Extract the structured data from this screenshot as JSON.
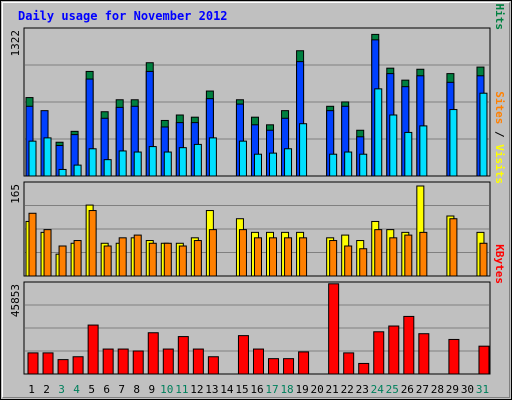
{
  "chart_data": {
    "type": "bar",
    "title": "Daily usage for November 2012",
    "categories": [
      "1",
      "2",
      "3",
      "4",
      "5",
      "6",
      "7",
      "8",
      "9",
      "10",
      "11",
      "12",
      "13",
      "14",
      "15",
      "16",
      "17",
      "18",
      "19",
      "20",
      "21",
      "22",
      "23",
      "24",
      "25",
      "26",
      "27",
      "28",
      "29",
      "30",
      "31"
    ],
    "weekend_days": [
      "3",
      "4",
      "10",
      "11",
      "17",
      "18",
      "24",
      "25",
      "31"
    ],
    "colors": {
      "title": "#0000ff",
      "hits": "#008040",
      "files": "#0040ff",
      "pages": "#00e0ff",
      "visits": "#ffff00",
      "sites": "#ff8000",
      "kbytes": "#ff0000",
      "weekday": "#000000",
      "weekend": "#00805c"
    },
    "panels": [
      {
        "name": "hits-files-pages",
        "ymax_label": "1322",
        "ymax": 1322,
        "right_labels": [
          {
            "text": "Pages",
            "color": "#00e0ff"
          },
          {
            "text": " / ",
            "color": "#000000"
          },
          {
            "text": "Files",
            "color": "#0040ff"
          },
          {
            "text": " / ",
            "color": "#000000"
          },
          {
            "text": "Hits",
            "color": "#008040"
          }
        ],
        "series": [
          {
            "name": "Hits",
            "values": [
              720,
              0,
              310,
              410,
              960,
              590,
              700,
              700,
              1040,
              510,
              560,
              540,
              780,
              0,
              700,
              540,
              470,
              600,
              1150,
              0,
              640,
              680,
              420,
              1300,
              990,
              880,
              980,
              0,
              940,
              0,
              1000
            ]
          },
          {
            "name": "Files",
            "values": [
              640,
              600,
              280,
              380,
              890,
              530,
              630,
              640,
              960,
              450,
              490,
              490,
              710,
              0,
              660,
              470,
              420,
              530,
              1050,
              0,
              600,
              640,
              360,
              1250,
              940,
              820,
              920,
              0,
              860,
              0,
              920
            ]
          },
          {
            "name": "Pages",
            "values": [
              320,
              350,
              60,
              100,
              250,
              150,
              230,
              220,
              270,
              220,
              260,
              290,
              350,
              0,
              320,
              200,
              210,
              250,
              480,
              0,
              200,
              220,
              200,
              800,
              560,
              400,
              460,
              0,
              610,
              0,
              760
            ]
          }
        ]
      },
      {
        "name": "visits-sites",
        "ymax_label": "165",
        "ymax": 165,
        "right_labels": [
          {
            "text": "Sites",
            "color": "#ff8000"
          },
          {
            "text": " / ",
            "color": "#000000"
          },
          {
            "text": "Visits",
            "color": "#ffff00"
          }
        ],
        "series": [
          {
            "name": "Visits",
            "values": [
              100,
              80,
              40,
              60,
              130,
              60,
              60,
              70,
              65,
              60,
              60,
              70,
              120,
              0,
              105,
              80,
              80,
              80,
              80,
              0,
              70,
              75,
              65,
              100,
              85,
              80,
              165,
              0,
              110,
              0,
              80
            ]
          },
          {
            "name": "Sites",
            "values": [
              115,
              85,
              55,
              65,
              120,
              55,
              70,
              75,
              60,
              60,
              55,
              65,
              85,
              0,
              85,
              70,
              70,
              70,
              70,
              0,
              65,
              55,
              50,
              85,
              70,
              75,
              80,
              0,
              105,
              0,
              60
            ]
          }
        ]
      },
      {
        "name": "kbytes",
        "ymax_label": "45853",
        "ymax": 45853,
        "right_labels": [
          {
            "text": "KBytes",
            "color": "#ff0000"
          }
        ],
        "series": [
          {
            "name": "KBytes",
            "values": [
              11000,
              11000,
              7500,
              9000,
              25500,
              13000,
              13000,
              12000,
              21500,
              13000,
              19500,
              13000,
              9000,
              0,
              20000,
              13000,
              8000,
              8000,
              11500,
              0,
              47000,
              11000,
              5500,
              22000,
              25000,
              30000,
              21000,
              0,
              18000,
              0,
              14500
            ]
          }
        ]
      }
    ]
  }
}
